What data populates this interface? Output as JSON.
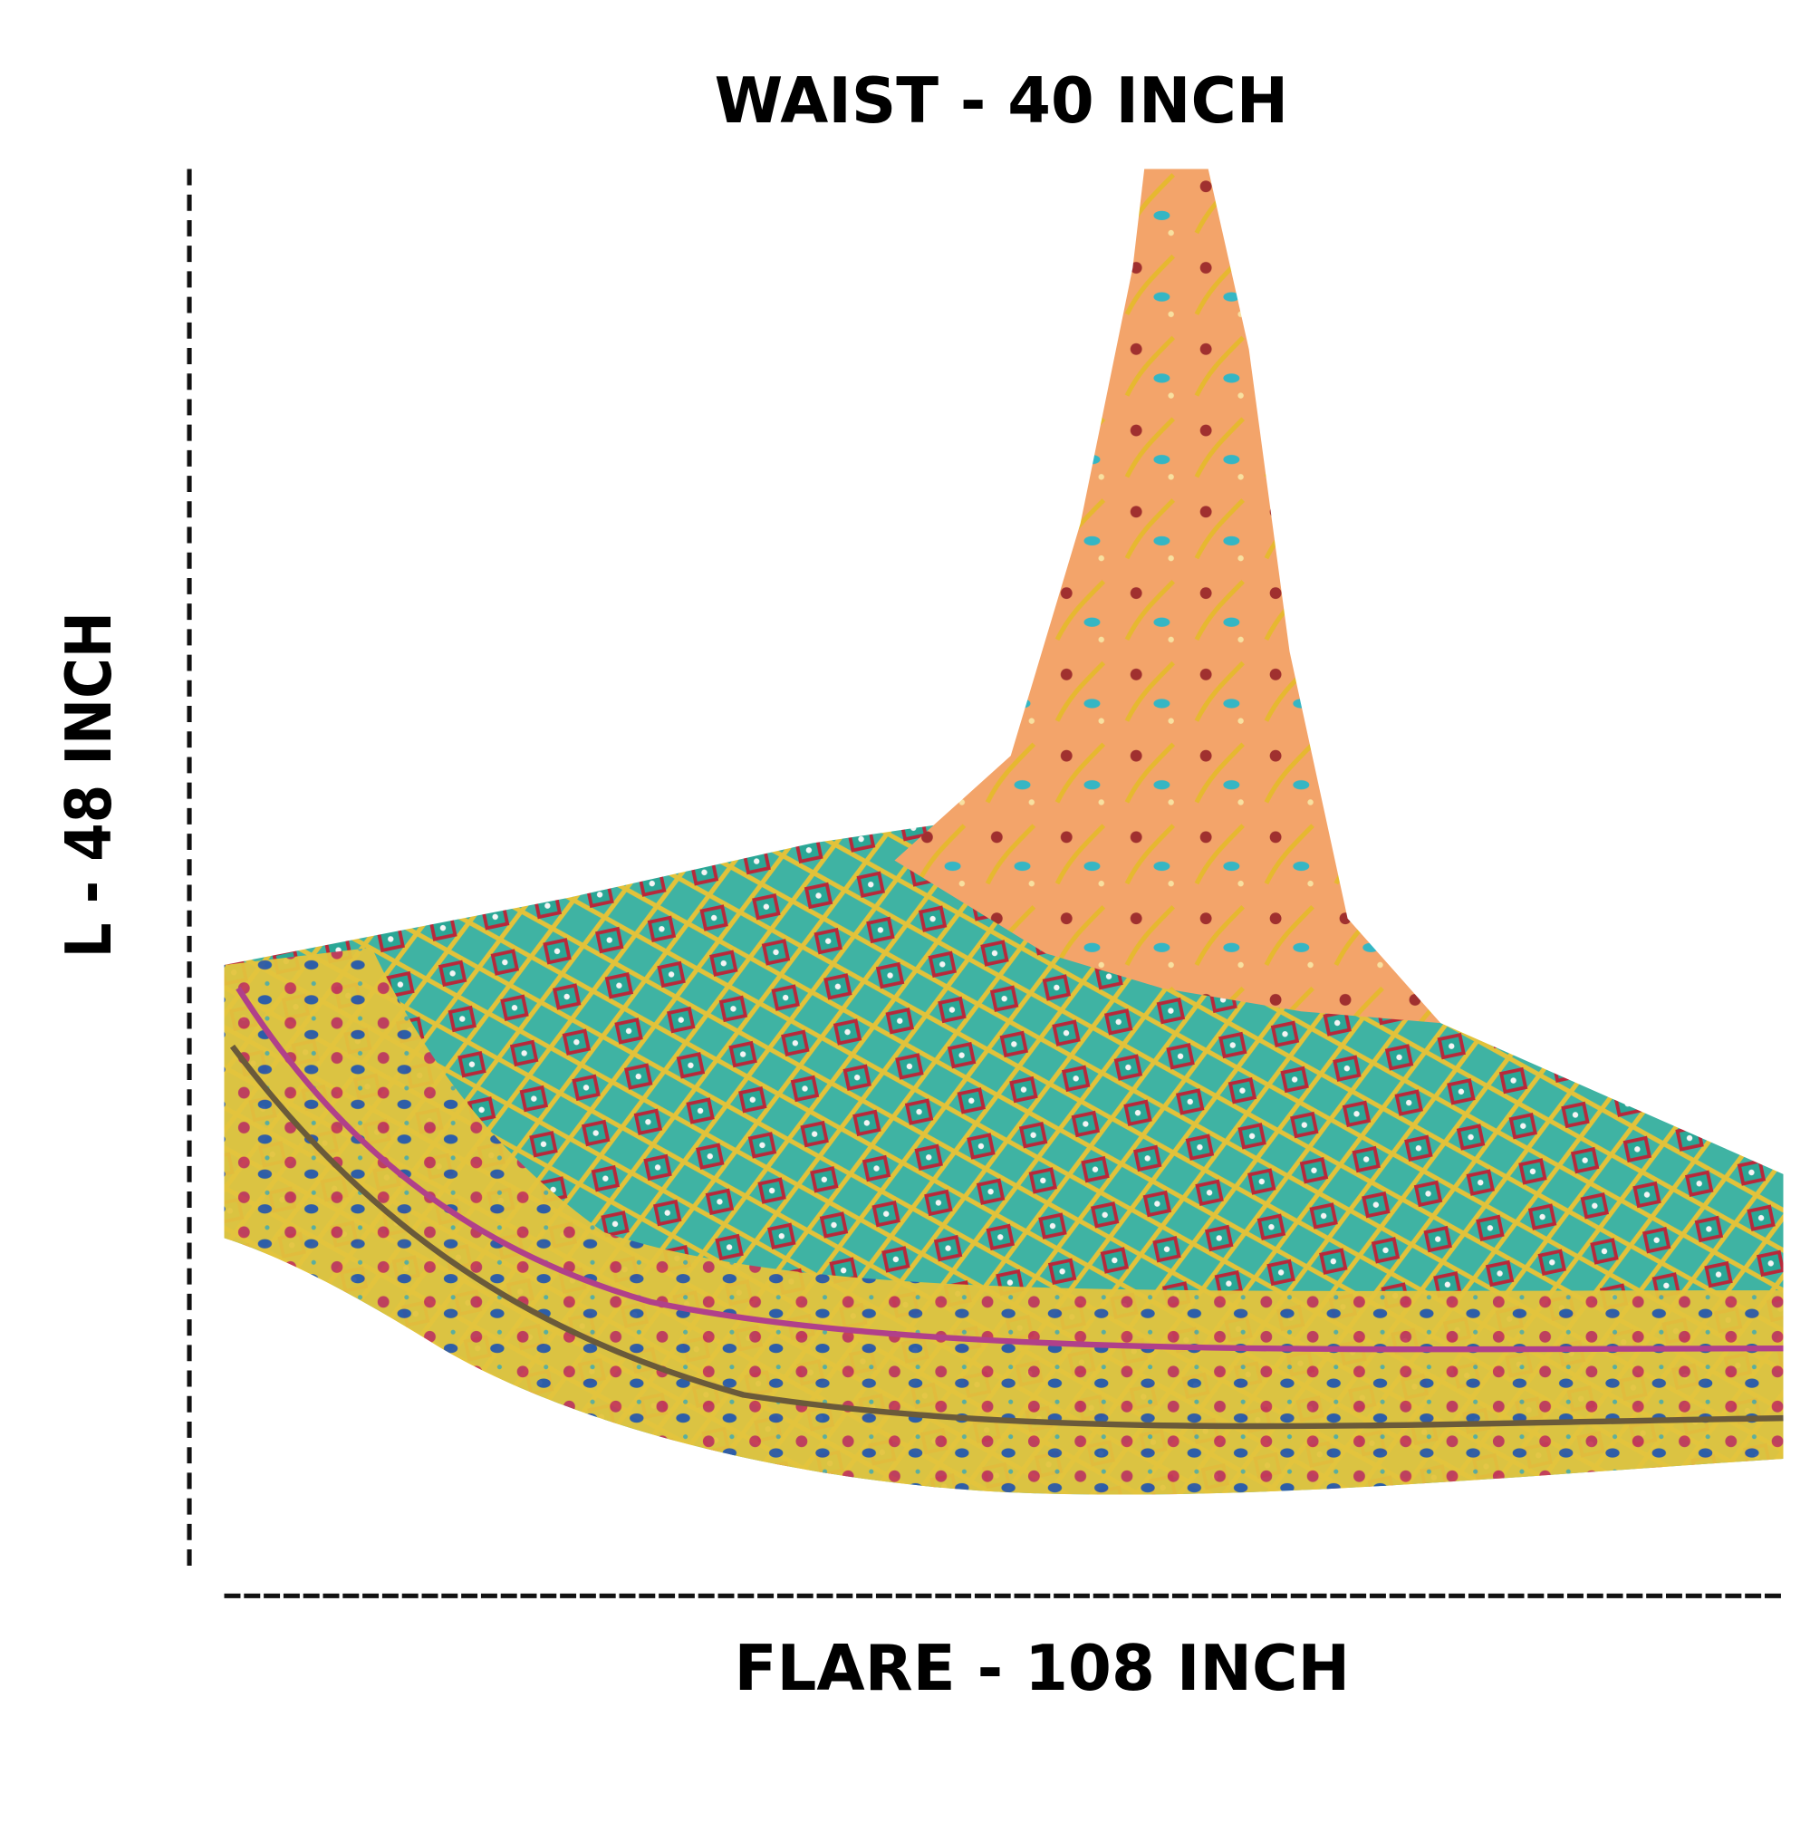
{
  "labels": {
    "waist": "WAIST - 40 INCH",
    "length": "L - 48 INCH",
    "flare": "FLARE - 108 INCH"
  }
}
